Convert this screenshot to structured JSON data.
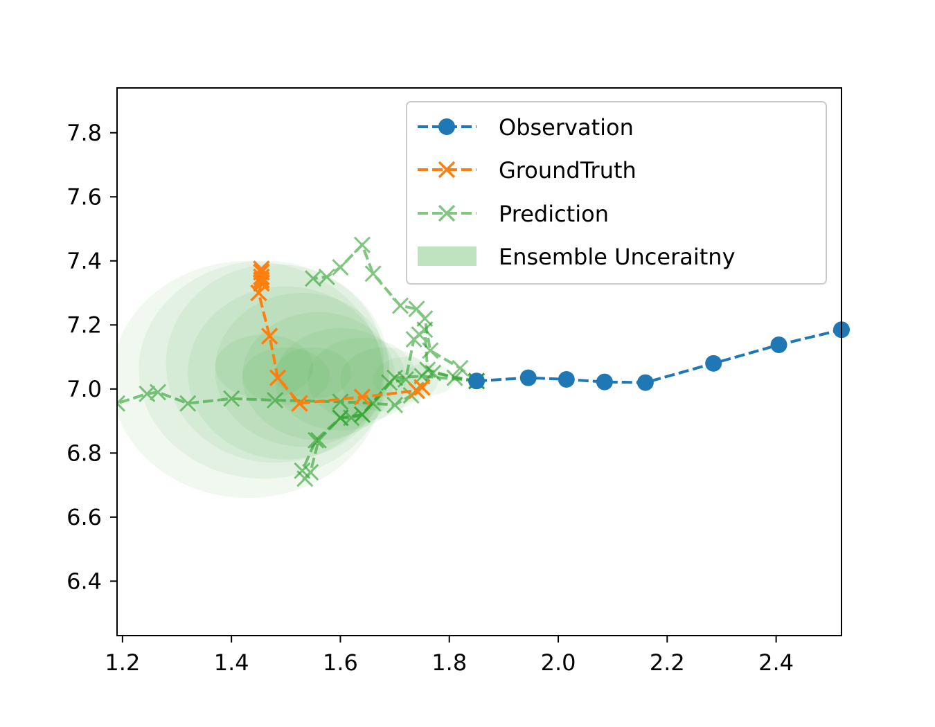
{
  "chart_data": {
    "type": "line",
    "title": "",
    "xlabel": "",
    "ylabel": "",
    "xlim": [
      1.19,
      2.52
    ],
    "ylim": [
      6.23,
      7.94
    ],
    "xticks": [
      1.2,
      1.4,
      1.6,
      1.8,
      2.0,
      2.2,
      2.4
    ],
    "yticks": [
      6.4,
      6.6,
      6.8,
      7.0,
      7.2,
      7.4,
      7.6,
      7.8
    ],
    "xtick_labels": [
      "1.2",
      "1.4",
      "1.6",
      "1.8",
      "2.0",
      "2.2",
      "2.4"
    ],
    "ytick_labels": [
      "6.4",
      "6.6",
      "6.8",
      "7.0",
      "7.2",
      "7.4",
      "7.6",
      "7.8"
    ],
    "grid": false,
    "legend_position": "upper right",
    "legend": [
      "Observation",
      "GroundTruth",
      "Prediction",
      "Ensemble Unceraitny"
    ],
    "colors": {
      "observation": "#1f77b4",
      "groundtruth": "#ff7f0e",
      "prediction": "#2ca02c",
      "uncertainty": "#2ca02c"
    },
    "series": [
      {
        "name": "Observation",
        "x": [
          1.85,
          1.945,
          2.015,
          2.085,
          2.16,
          2.285,
          2.405,
          2.52
        ],
        "y": [
          7.025,
          7.035,
          7.03,
          7.022,
          7.02,
          7.08,
          7.138,
          7.185
        ]
      },
      {
        "name": "GroundTruth",
        "x": [
          1.455,
          1.455,
          1.455,
          1.455,
          1.455,
          1.45,
          1.47,
          1.485,
          1.525,
          1.64,
          1.74,
          1.75
        ],
        "y": [
          7.375,
          7.365,
          7.35,
          7.34,
          7.33,
          7.3,
          7.165,
          7.035,
          6.955,
          6.975,
          6.995,
          7.005
        ]
      }
    ],
    "prediction_paths": [
      {
        "name": "Prediction",
        "x": [
          1.85,
          1.82,
          1.765,
          1.755,
          1.74,
          1.71,
          1.66,
          1.64,
          1.6,
          1.575,
          1.55
        ],
        "y": [
          7.025,
          7.065,
          7.12,
          7.22,
          7.25,
          7.26,
          7.36,
          7.45,
          7.38,
          7.35,
          7.345
        ]
      },
      {
        "name": "Prediction",
        "x": [
          1.85,
          1.81,
          1.76,
          1.755,
          1.745,
          1.735,
          1.72,
          1.69,
          1.64,
          1.62,
          1.6,
          1.56,
          1.545,
          1.535
        ],
        "y": [
          7.025,
          7.035,
          7.06,
          7.185,
          7.17,
          7.155,
          7.03,
          7.02,
          6.92,
          6.91,
          6.91,
          6.84,
          6.74,
          6.72
        ]
      },
      {
        "name": "Prediction",
        "x": [
          1.85,
          1.77,
          1.73,
          1.7,
          1.66,
          1.6,
          1.48,
          1.4,
          1.32,
          1.265,
          1.245,
          1.19
        ],
        "y": [
          7.025,
          7.05,
          6.98,
          6.95,
          6.955,
          6.96,
          6.965,
          6.97,
          6.955,
          6.99,
          6.985,
          6.955
        ]
      },
      {
        "name": "Prediction",
        "x": [
          1.85,
          1.75,
          1.7,
          1.64,
          1.6,
          1.555,
          1.53
        ],
        "y": [
          7.025,
          7.04,
          7.035,
          6.92,
          6.91,
          6.84,
          6.745
        ]
      }
    ],
    "uncertainty_ellipses": [
      {
        "cx": 1.43,
        "cy": 7.03,
        "rx": 0.25,
        "ry": 0.37
      },
      {
        "cx": 1.46,
        "cy": 7.06,
        "rx": 0.23,
        "ry": 0.34
      },
      {
        "cx": 1.48,
        "cy": 7.08,
        "rx": 0.2,
        "ry": 0.31
      },
      {
        "cx": 1.5,
        "cy": 7.05,
        "rx": 0.18,
        "ry": 0.27
      },
      {
        "cx": 1.53,
        "cy": 7.06,
        "rx": 0.16,
        "ry": 0.24
      },
      {
        "cx": 1.56,
        "cy": 7.04,
        "rx": 0.14,
        "ry": 0.2
      },
      {
        "cx": 1.6,
        "cy": 7.03,
        "rx": 0.12,
        "ry": 0.16
      },
      {
        "cx": 1.64,
        "cy": 7.03,
        "rx": 0.1,
        "ry": 0.13
      },
      {
        "cx": 1.68,
        "cy": 7.03,
        "rx": 0.08,
        "ry": 0.1
      },
      {
        "cx": 1.72,
        "cy": 7.03,
        "rx": 0.06,
        "ry": 0.07
      },
      {
        "cx": 1.76,
        "cy": 7.03,
        "rx": 0.05,
        "ry": 0.05
      },
      {
        "cx": 1.46,
        "cy": 7.07,
        "rx": 0.09,
        "ry": 0.1
      },
      {
        "cx": 1.5,
        "cy": 7.04,
        "rx": 0.08,
        "ry": 0.09
      },
      {
        "cx": 1.55,
        "cy": 7.05,
        "rx": 0.07,
        "ry": 0.08
      }
    ]
  }
}
